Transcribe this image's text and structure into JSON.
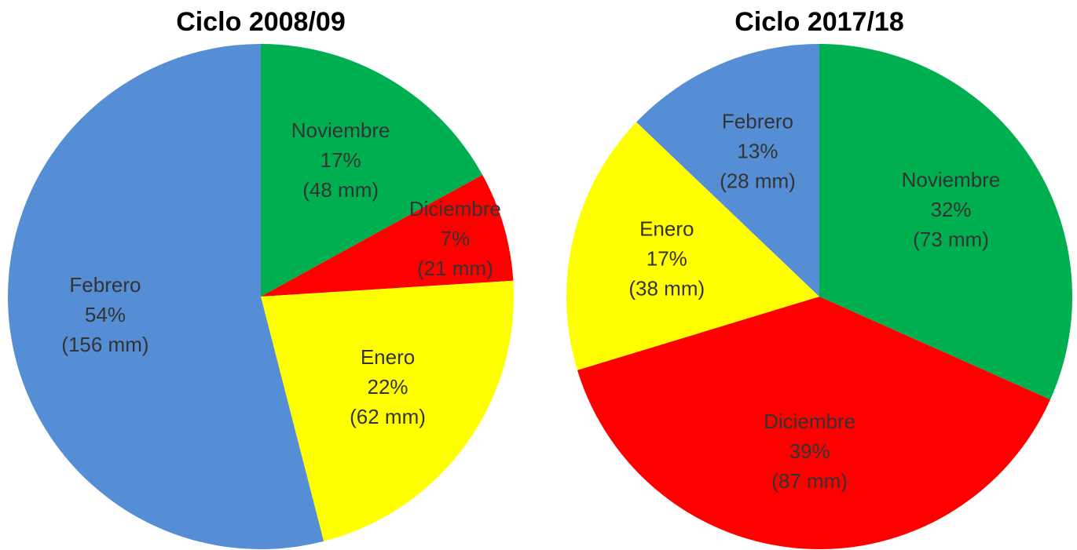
{
  "chart_data": [
    {
      "type": "pie",
      "title": "Ciclo 2008/09",
      "categories": [
        "Noviembre",
        "Diciembre",
        "Enero",
        "Febrero"
      ],
      "values": [
        17,
        7,
        22,
        54
      ],
      "value_labels": [
        "17%",
        "7%",
        "22%",
        "54%"
      ],
      "amount_labels": [
        "(48 mm)",
        "(21 mm)",
        "(62 mm)",
        "(156 mm)"
      ],
      "colors": [
        "#00b050",
        "#ff0000",
        "#ffff00",
        "#558ed5"
      ]
    },
    {
      "type": "pie",
      "title": "Ciclo 2017/18",
      "categories": [
        "Noviembre",
        "Diciembre",
        "Enero",
        "Febrero"
      ],
      "values": [
        32,
        39,
        17,
        13
      ],
      "value_labels": [
        "32%",
        "39%",
        "17%",
        "13%"
      ],
      "amount_labels": [
        "(73 mm)",
        "(87 mm)",
        "(38 mm)",
        "(28 mm)"
      ],
      "colors": [
        "#00b050",
        "#ff0000",
        "#ffff00",
        "#558ed5"
      ]
    }
  ]
}
